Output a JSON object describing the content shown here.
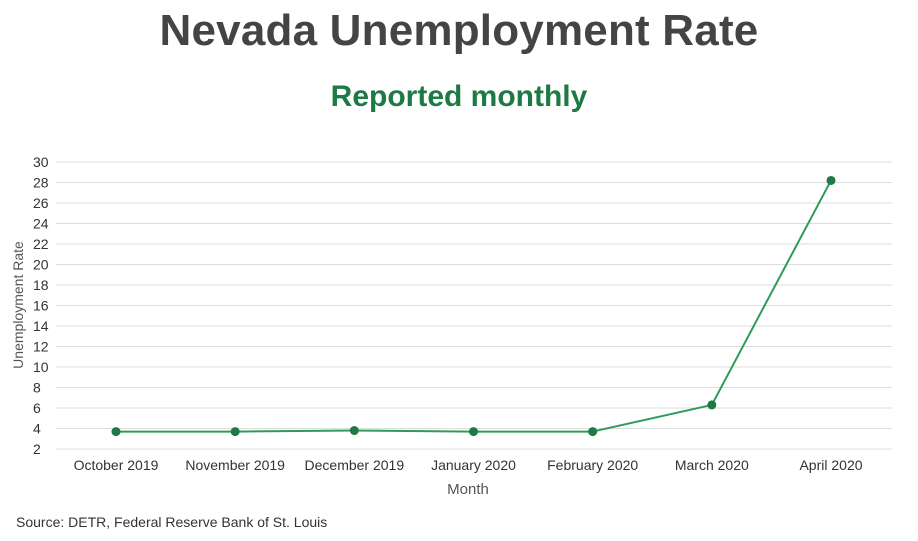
{
  "title": "Nevada Unemployment Rate",
  "subtitle": "Reported monthly",
  "source": "Source: DETR, Federal Reserve Bank of St. Louis",
  "colors": {
    "title": "#444444",
    "accent": "#1e7a44",
    "series": "#2e9b5a",
    "grid": "#dddddd"
  },
  "chart_data": {
    "type": "line",
    "title": "Nevada Unemployment Rate",
    "subtitle": "Reported monthly",
    "xlabel": "Month",
    "ylabel": "Unemployment Rate",
    "categories": [
      "October 2019",
      "November 2019",
      "December 2019",
      "January 2020",
      "February 2020",
      "March 2020",
      "April 2020"
    ],
    "values": [
      3.7,
      3.7,
      3.8,
      3.7,
      3.7,
      6.3,
      28.2
    ],
    "ylim": [
      2,
      30
    ],
    "yticks": [
      2,
      4,
      6,
      8,
      10,
      12,
      14,
      16,
      18,
      20,
      22,
      24,
      26,
      28,
      30
    ],
    "grid": true,
    "legend": "none"
  }
}
